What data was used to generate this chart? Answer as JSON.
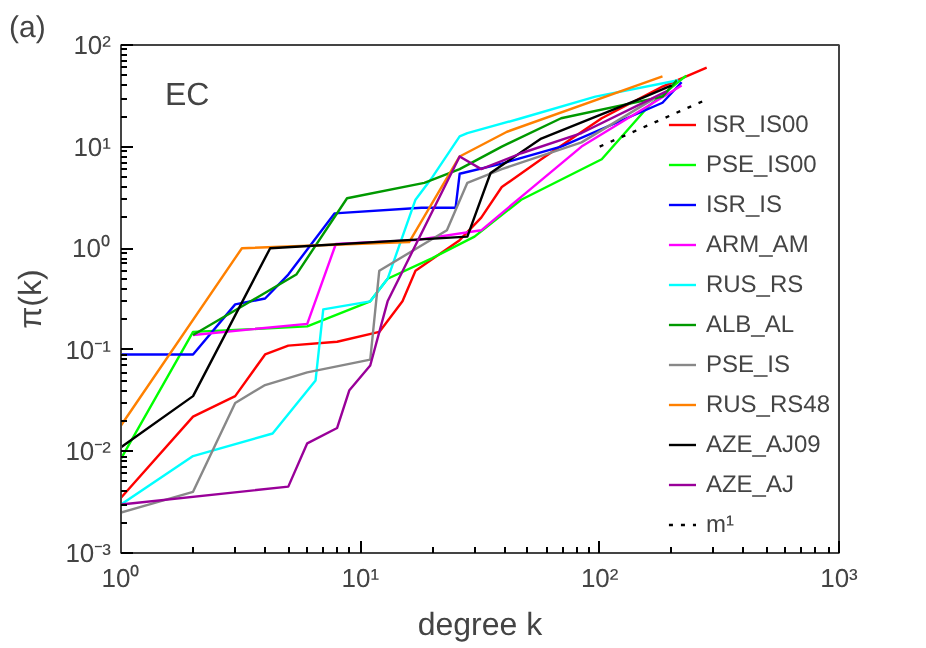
{
  "chart_data": {
    "type": "line",
    "xlabel": "degree k",
    "ylabel": "π(k)",
    "log": "xy",
    "grid": false,
    "legend": "bottom right",
    "marker": "none",
    "line_style": "solid",
    "annotations": [
      "(a)",
      "EC"
    ],
    "xlim": [
      1,
      1000
    ],
    "ylim": [
      0.001,
      100
    ],
    "xticks": [
      {
        "value": 1,
        "label": "10⁰"
      },
      {
        "value": 10,
        "label": "10¹"
      },
      {
        "value": 100,
        "label": "10²"
      },
      {
        "value": 1000,
        "label": "10³"
      }
    ],
    "yticks": [
      {
        "value": 0.001,
        "label": "10⁻³"
      },
      {
        "value": 0.01,
        "label": "10⁻²"
      },
      {
        "value": 0.1,
        "label": "10⁻¹"
      },
      {
        "value": 1,
        "label": "10⁰"
      },
      {
        "value": 10,
        "label": "10¹"
      },
      {
        "value": 100,
        "label": "10²"
      }
    ],
    "series": [
      {
        "name": "ISR_IS00",
        "color": "#ff0000",
        "x": [
          1,
          2,
          3,
          4,
          5,
          8,
          12,
          15,
          17,
          26,
          32,
          39,
          57,
          102,
          183,
          280
        ],
        "values": [
          0.0035,
          0.022,
          0.035,
          0.09,
          0.11,
          0.12,
          0.15,
          0.3,
          0.6,
          1.2,
          2,
          4,
          7.5,
          19,
          39,
          60
        ]
      },
      {
        "name": "PSE_IS00",
        "color": "#00ff00",
        "x": [
          1,
          2,
          6,
          11,
          13,
          20,
          30,
          47,
          102,
          160,
          230
        ],
        "values": [
          0.0085,
          0.15,
          0.17,
          0.3,
          0.5,
          0.8,
          1.3,
          3,
          7.5,
          25,
          50
        ]
      },
      {
        "name": "ISR_IS",
        "color": "#0000ff",
        "x": [
          1,
          2,
          3,
          4,
          5,
          7.8,
          18,
          25,
          26,
          39,
          69,
          183,
          220
        ],
        "values": [
          0.09,
          0.09,
          0.28,
          0.32,
          0.55,
          2.2,
          2.5,
          2.5,
          5.4,
          6.8,
          10,
          27,
          43
        ]
      },
      {
        "name": "ARM_AM",
        "color": "#ff00ff",
        "x": [
          2,
          6,
          7.9,
          17,
          32,
          47,
          84,
          220
        ],
        "values": [
          0.14,
          0.18,
          1.1,
          1.2,
          1.5,
          3.2,
          10,
          40
        ]
      },
      {
        "name": "RUS_RS",
        "color": "#00ffff",
        "x": [
          1,
          2,
          4.3,
          6.5,
          7,
          11,
          13,
          17,
          20,
          26,
          28,
          47,
          96,
          213
        ],
        "values": [
          0.003,
          0.009,
          0.015,
          0.05,
          0.25,
          0.3,
          0.5,
          3,
          5,
          12.6,
          13.6,
          19,
          31,
          45
        ]
      },
      {
        "name": "ALB_AL",
        "color": "#009900",
        "x": [
          2,
          5.4,
          8.8,
          18.5,
          26,
          39,
          69,
          183,
          210
        ],
        "values": [
          0.14,
          0.55,
          3.1,
          4.4,
          6,
          10,
          19,
          31,
          45
        ]
      },
      {
        "name": "PSE_IS",
        "color": "#888888",
        "x": [
          1,
          2,
          3,
          4,
          6,
          11,
          12,
          23,
          28,
          39,
          84,
          170
        ],
        "values": [
          0.0025,
          0.004,
          0.03,
          0.045,
          0.06,
          0.08,
          0.6,
          1.5,
          4.4,
          6,
          11,
          30
        ]
      },
      {
        "name": "RUS_RS48",
        "color": "#ff8000",
        "x": [
          1,
          3.2,
          16,
          26,
          41,
          183
        ],
        "values": [
          0.018,
          1,
          1.15,
          8,
          14,
          49
        ]
      },
      {
        "name": "AZE_AJ09",
        "color": "#000000",
        "x": [
          1,
          2,
          4.2,
          28,
          35,
          57,
          150,
          200
        ],
        "values": [
          0.011,
          0.035,
          1,
          1.3,
          5.5,
          12,
          30,
          40
        ]
      },
      {
        "name": "AZE_AJ",
        "color": "#990099",
        "x": [
          1,
          5,
          6,
          8,
          9,
          11,
          13,
          26,
          32,
          47,
          84,
          190
        ],
        "values": [
          0.003,
          0.0045,
          0.012,
          0.017,
          0.04,
          0.07,
          0.3,
          8,
          6,
          8.6,
          13.6,
          35
        ]
      },
      {
        "name": "m¹",
        "color": "#000000",
        "line_style": "dotted",
        "x": [
          100,
          270
        ],
        "values": [
          10,
          28
        ]
      }
    ]
  }
}
